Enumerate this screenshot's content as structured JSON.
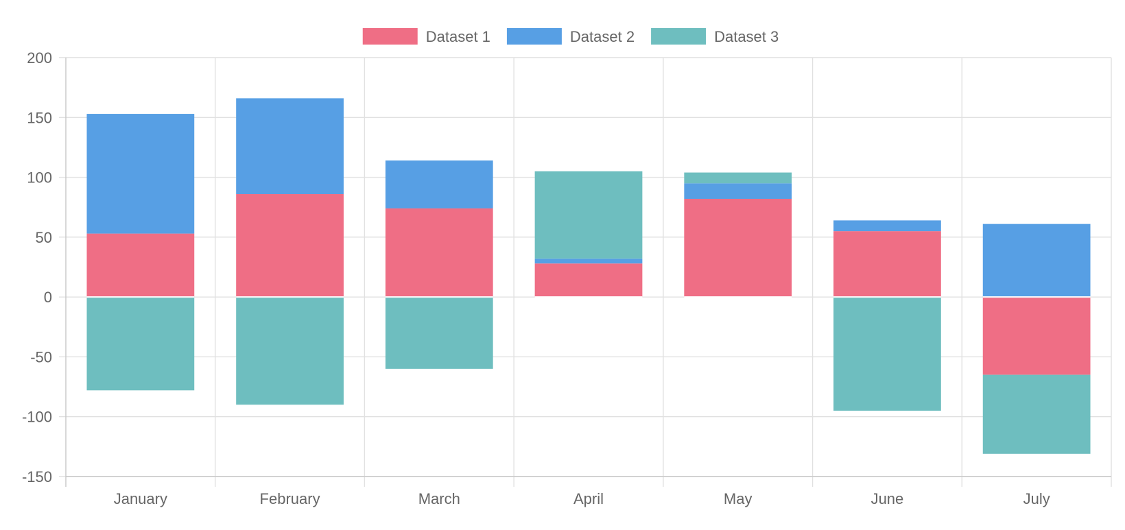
{
  "chart_data": {
    "type": "bar",
    "stacked": true,
    "categories": [
      "January",
      "February",
      "March",
      "April",
      "May",
      "June",
      "July"
    ],
    "series": [
      {
        "name": "Dataset 1",
        "color": "#ef6e85",
        "values": [
          53,
          86,
          74,
          28,
          82,
          55,
          -65
        ]
      },
      {
        "name": "Dataset 2",
        "color": "#579fe4",
        "values": [
          100,
          80,
          40,
          4,
          13,
          9,
          61
        ]
      },
      {
        "name": "Dataset 3",
        "color": "#6ebebf",
        "values": [
          -78,
          -90,
          -60,
          73,
          9,
          -95,
          -66
        ]
      }
    ],
    "ylim": [
      -150,
      200
    ],
    "yticks": [
      200,
      150,
      100,
      50,
      0,
      -50,
      -100,
      -150
    ],
    "grid": true,
    "legend_position": "top"
  }
}
